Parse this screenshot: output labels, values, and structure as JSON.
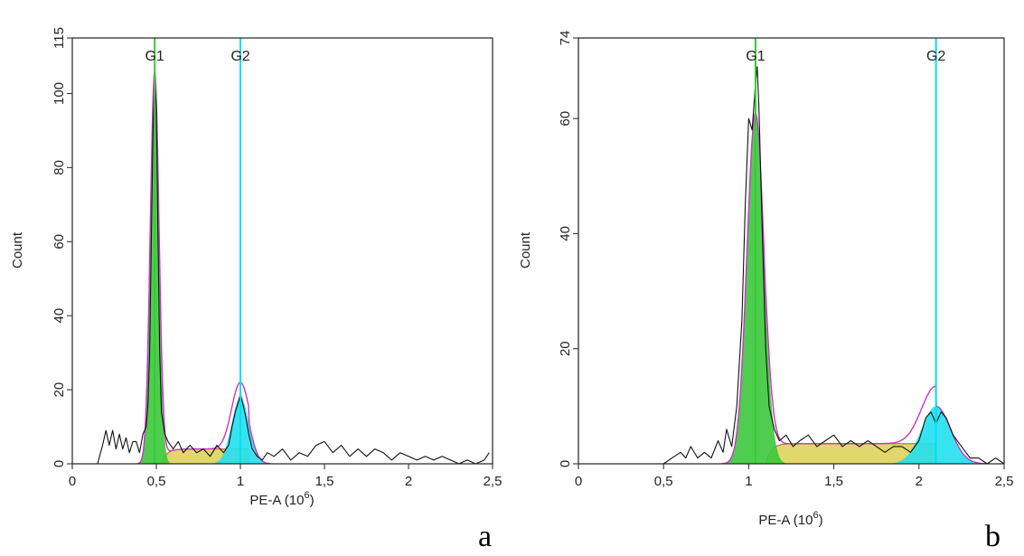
{
  "chart_data": [
    {
      "type": "histogram",
      "panel_label": "a",
      "xlabel": "PE-A (10",
      "xlabel_sup": "6",
      "xlabel_end": ")",
      "ylabel": "Count",
      "xlim": [
        0,
        2.5
      ],
      "ylim": [
        0,
        115
      ],
      "xticks": [
        0,
        0.5,
        1,
        1.5,
        2,
        2.5
      ],
      "xtick_labels": [
        "0",
        "0,5",
        "1",
        "1,5",
        "2",
        "2,5"
      ],
      "yticks": [
        0,
        20,
        40,
        60,
        80,
        100,
        115
      ],
      "ytick_labels": [
        "0",
        "20",
        "40",
        "60",
        "80",
        "100",
        "115"
      ],
      "gates": [
        {
          "name": "G1",
          "x": 0.49,
          "color": "#33cc33"
        },
        {
          "name": "G2",
          "x": 1.0,
          "color": "#00e0f0"
        }
      ],
      "colors": {
        "g1_fill": "#3cc83c",
        "g2_fill": "#22e0f0",
        "s_fill": "#dcd052",
        "s_line": "#c0504d",
        "fit_line": "#cc33cc",
        "data_line": "#111111"
      },
      "g1_peak": {
        "mean": 0.49,
        "sd": 0.026,
        "height": 106
      },
      "g2_peak": {
        "mean": 1.0,
        "sd": 0.052,
        "height": 18
      },
      "s_phase": {
        "start": 0.53,
        "end": 1.05,
        "height": 4
      },
      "histogram": {
        "x": [
          0.15,
          0.18,
          0.2,
          0.22,
          0.24,
          0.26,
          0.28,
          0.3,
          0.32,
          0.34,
          0.36,
          0.38,
          0.4,
          0.42,
          0.44,
          0.45,
          0.46,
          0.47,
          0.48,
          0.49,
          0.5,
          0.51,
          0.52,
          0.53,
          0.55,
          0.57,
          0.6,
          0.63,
          0.66,
          0.7,
          0.74,
          0.78,
          0.82,
          0.86,
          0.9,
          0.93,
          0.95,
          0.97,
          0.99,
          1.0,
          1.01,
          1.03,
          1.05,
          1.07,
          1.1,
          1.13,
          1.16,
          1.2,
          1.25,
          1.3,
          1.35,
          1.4,
          1.45,
          1.5,
          1.55,
          1.6,
          1.65,
          1.7,
          1.75,
          1.8,
          1.85,
          1.9,
          1.95,
          2.0,
          2.05,
          2.1,
          2.15,
          2.2,
          2.25,
          2.3,
          2.35,
          2.4,
          2.45,
          2.48
        ],
        "y": [
          0,
          5,
          9,
          5,
          9,
          4,
          8,
          4,
          7,
          3,
          6,
          6,
          3,
          8,
          10,
          16,
          30,
          60,
          90,
          104,
          96,
          60,
          30,
          14,
          8,
          6,
          4,
          6,
          3,
          5,
          3,
          4,
          2,
          5,
          3,
          5,
          10,
          14,
          17,
          19,
          17,
          13,
          8,
          4,
          2,
          1,
          3,
          2,
          4,
          1,
          3,
          2,
          5,
          6,
          3,
          5,
          2,
          4,
          2,
          4,
          3,
          1,
          3,
          2,
          1,
          2,
          1,
          2,
          1,
          0,
          1,
          0,
          1,
          3
        ]
      }
    },
    {
      "type": "histogram",
      "panel_label": "b",
      "xlabel": "PE-A (10",
      "xlabel_sup": "6",
      "xlabel_end": ")",
      "ylabel": "Count",
      "xlim": [
        0,
        2.5
      ],
      "ylim": [
        0,
        74
      ],
      "xticks": [
        0,
        0.5,
        1,
        1.5,
        2,
        2.5
      ],
      "xtick_labels": [
        "0",
        "0,5",
        "1",
        "1,5",
        "2",
        "2,5"
      ],
      "yticks": [
        0,
        20,
        40,
        60,
        74
      ],
      "ytick_labels": [
        "0",
        "20",
        "40",
        "60",
        "74"
      ],
      "gates": [
        {
          "name": "G1",
          "x": 1.04,
          "color": "#33cc33"
        },
        {
          "name": "G2",
          "x": 2.1,
          "color": "#00e0f0"
        }
      ],
      "colors": {
        "g1_fill": "#3cc83c",
        "g2_fill": "#22e0f0",
        "s_fill": "#dcd052",
        "s_line": "#c0504d",
        "fit_line": "#cc33cc",
        "data_line": "#111111"
      },
      "g1_peak": {
        "mean": 1.04,
        "sd": 0.05,
        "height": 61
      },
      "g2_peak": {
        "mean": 2.1,
        "sd": 0.085,
        "height": 10
      },
      "s_phase": {
        "start": 1.1,
        "end": 2.1,
        "height": 3.5
      },
      "histogram": {
        "x": [
          0.5,
          0.55,
          0.6,
          0.63,
          0.66,
          0.7,
          0.74,
          0.78,
          0.82,
          0.85,
          0.87,
          0.9,
          0.93,
          0.96,
          0.98,
          1.0,
          1.02,
          1.04,
          1.05,
          1.06,
          1.08,
          1.1,
          1.12,
          1.15,
          1.18,
          1.22,
          1.26,
          1.3,
          1.35,
          1.4,
          1.45,
          1.5,
          1.55,
          1.6,
          1.65,
          1.7,
          1.75,
          1.8,
          1.85,
          1.9,
          1.95,
          2.0,
          2.04,
          2.07,
          2.1,
          2.13,
          2.16,
          2.2,
          2.25,
          2.3,
          2.35,
          2.4,
          2.45,
          2.5
        ],
        "y": [
          0,
          1,
          2,
          1,
          3,
          1,
          2,
          1,
          4,
          2,
          6,
          3,
          10,
          25,
          45,
          60,
          58,
          66,
          69,
          62,
          40,
          20,
          10,
          6,
          4,
          5,
          3,
          4,
          5,
          3,
          4,
          5,
          3,
          4,
          3,
          4,
          3,
          2,
          3,
          3,
          2,
          4,
          8,
          9,
          7,
          9,
          8,
          5,
          3,
          1,
          1,
          0,
          1,
          0
        ]
      }
    }
  ]
}
